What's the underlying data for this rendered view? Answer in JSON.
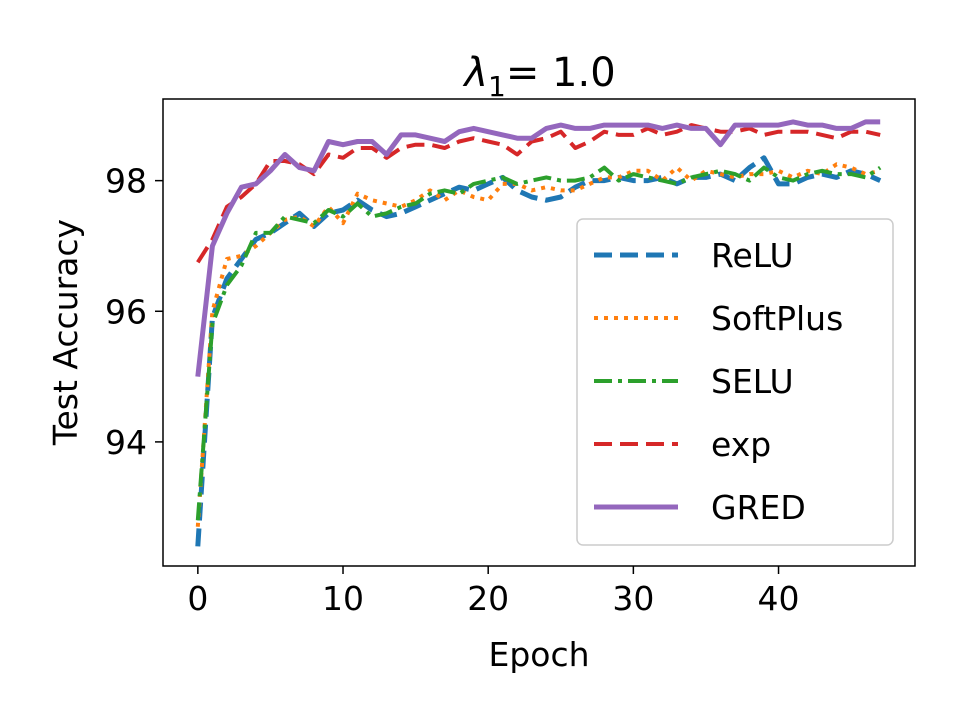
{
  "chart_data": {
    "type": "line",
    "title_symbol": "λ",
    "title_subscript": "1",
    "title_rest": "= 1.0",
    "xlabel": "Epoch",
    "ylabel": "Test Accuracy",
    "xlim": [
      -2.4,
      49.4
    ],
    "ylim": [
      92.1,
      99.25
    ],
    "xticks": [
      0,
      10,
      20,
      30,
      40
    ],
    "yticks": [
      94,
      96,
      98
    ],
    "grid": false,
    "legend_position": "center-right",
    "x": [
      0,
      1,
      2,
      3,
      4,
      5,
      6,
      7,
      8,
      9,
      10,
      11,
      12,
      13,
      14,
      15,
      16,
      17,
      18,
      19,
      20,
      21,
      22,
      23,
      24,
      25,
      26,
      27,
      28,
      29,
      30,
      31,
      32,
      33,
      34,
      35,
      36,
      37,
      38,
      39,
      40,
      41,
      42,
      43,
      44,
      45,
      46,
      47
    ],
    "series": [
      {
        "name": "ReLU",
        "color": "#1f77b4",
        "style": "dashed",
        "values": [
          92.4,
          95.9,
          96.5,
          96.8,
          97.1,
          97.2,
          97.35,
          97.5,
          97.3,
          97.5,
          97.55,
          97.7,
          97.55,
          97.45,
          97.5,
          97.6,
          97.7,
          97.8,
          97.9,
          97.85,
          97.95,
          98.05,
          97.85,
          97.75,
          97.7,
          97.75,
          97.9,
          98.0,
          98.0,
          98.05,
          98.0,
          98.0,
          98.05,
          97.95,
          98.05,
          98.05,
          98.1,
          98.0,
          98.2,
          98.35,
          97.95,
          97.95,
          98.05,
          98.1,
          98.05,
          98.15,
          98.1,
          98.0
        ]
      },
      {
        "name": "SoftPlus",
        "color": "#ff7f0e",
        "style": "dotted",
        "values": [
          92.7,
          96.0,
          96.8,
          96.85,
          97.0,
          97.2,
          97.4,
          97.45,
          97.3,
          97.6,
          97.35,
          97.8,
          97.7,
          97.65,
          97.6,
          97.7,
          97.85,
          97.7,
          97.85,
          97.75,
          97.7,
          97.95,
          97.95,
          97.85,
          97.9,
          97.85,
          97.85,
          97.95,
          98.05,
          98.05,
          98.15,
          98.15,
          98.0,
          98.2,
          98.0,
          98.15,
          98.1,
          98.05,
          98.1,
          98.1,
          98.15,
          98.05,
          98.15,
          98.1,
          98.25,
          98.2,
          98.1,
          98.15
        ]
      },
      {
        "name": "SELU",
        "color": "#2ca02c",
        "style": "dashdot",
        "values": [
          92.8,
          95.8,
          96.4,
          96.7,
          97.2,
          97.2,
          97.45,
          97.4,
          97.35,
          97.55,
          97.45,
          97.65,
          97.45,
          97.5,
          97.6,
          97.65,
          97.8,
          97.85,
          97.8,
          97.95,
          98.0,
          98.05,
          97.95,
          98.0,
          98.05,
          98.0,
          98.0,
          98.05,
          98.2,
          98.0,
          98.1,
          98.05,
          98.0,
          97.95,
          98.05,
          98.1,
          98.15,
          98.1,
          98.0,
          98.2,
          98.05,
          98.0,
          98.1,
          98.15,
          98.1,
          98.1,
          98.05,
          98.2
        ]
      },
      {
        "name": "exp",
        "color": "#d62728",
        "style": "dashed",
        "values": [
          96.75,
          97.1,
          97.6,
          97.75,
          97.95,
          98.3,
          98.3,
          98.25,
          98.1,
          98.4,
          98.35,
          98.5,
          98.5,
          98.35,
          98.5,
          98.55,
          98.55,
          98.5,
          98.6,
          98.65,
          98.6,
          98.55,
          98.4,
          98.6,
          98.65,
          98.75,
          98.5,
          98.6,
          98.75,
          98.7,
          98.7,
          98.8,
          98.7,
          98.75,
          98.85,
          98.8,
          98.75,
          98.75,
          98.8,
          98.7,
          98.75,
          98.75,
          98.75,
          98.7,
          98.65,
          98.75,
          98.75,
          98.7
        ]
      },
      {
        "name": "GRED",
        "color": "#9467bd",
        "style": "solid",
        "values": [
          95.0,
          97.0,
          97.5,
          97.9,
          97.95,
          98.15,
          98.4,
          98.2,
          98.15,
          98.6,
          98.55,
          98.6,
          98.6,
          98.4,
          98.7,
          98.7,
          98.65,
          98.6,
          98.75,
          98.8,
          98.75,
          98.7,
          98.65,
          98.65,
          98.8,
          98.85,
          98.8,
          98.8,
          98.85,
          98.85,
          98.85,
          98.85,
          98.8,
          98.85,
          98.8,
          98.8,
          98.55,
          98.85,
          98.85,
          98.85,
          98.85,
          98.9,
          98.85,
          98.85,
          98.8,
          98.8,
          98.9,
          98.9
        ]
      }
    ]
  }
}
